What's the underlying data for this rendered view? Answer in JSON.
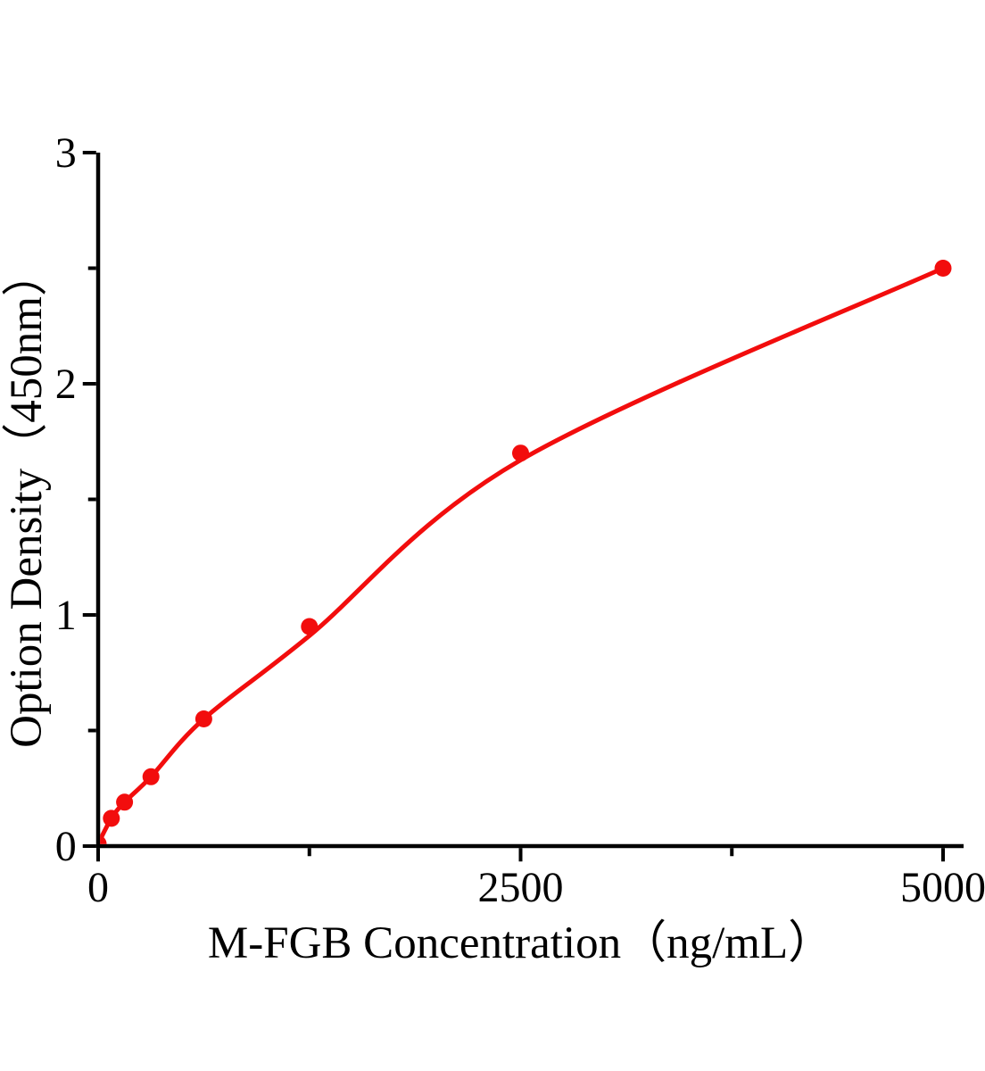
{
  "chart_data": {
    "type": "scatter",
    "title": "",
    "xlabel": "M-FGB Concentration（ng/mL）",
    "ylabel": "Option Density（450nm）",
    "x": [
      0,
      78.13,
      156.25,
      312.5,
      625,
      1250,
      2500,
      5000
    ],
    "y": [
      0.01,
      0.12,
      0.19,
      0.3,
      0.55,
      0.95,
      1.7,
      2.5
    ],
    "fit_curve_y": [
      0.01,
      0.12,
      0.19,
      0.3,
      0.55,
      0.91,
      1.67,
      2.5
    ],
    "xlim": [
      0,
      5120
    ],
    "ylim": [
      0,
      3
    ],
    "x_major_ticks": [
      0,
      2500,
      5000
    ],
    "x_major_tick_labels": [
      "0",
      "2500",
      "5000"
    ],
    "x_minor_ticks": [
      1250,
      3750
    ],
    "y_major_ticks": [
      0,
      1,
      2,
      3
    ],
    "y_major_tick_labels": [
      "0",
      "1",
      "2",
      "3"
    ],
    "y_minor_ticks": [
      0.5,
      1.5,
      2.5
    ],
    "grid": false,
    "legend": null,
    "marker_color": "#f20d0d",
    "line_color": "#f20d0d",
    "axis_color": "#000000"
  }
}
